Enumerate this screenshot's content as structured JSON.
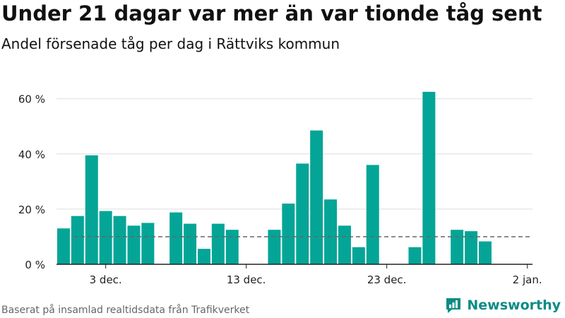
{
  "title": "Under 21 dagar var mer än var tionde tåg sent",
  "subtitle": "Andel försenade tåg per dag i Rättviks kommun",
  "footer": "Baserat på insamlad realtidsdata från Trafikverket",
  "brand": "Newsworthy",
  "colors": {
    "bar": "#04a597",
    "grid": "#dddddd",
    "axis": "#222222",
    "reference": "#666666",
    "brand": "#0b8c84"
  },
  "chart_data": {
    "type": "bar",
    "title": "Under 21 dagar var mer än var tionde tåg sent",
    "subtitle": "Andel försenade tåg per dag i Rättviks kommun",
    "xlabel": "",
    "ylabel": "",
    "ylim": [
      0,
      65
    ],
    "yticks": [
      0,
      20,
      40,
      60
    ],
    "ytick_labels": [
      "0 %",
      "20 %",
      "40 %",
      "60 %"
    ],
    "x_start": "2019-11-30",
    "xticks": [
      {
        "index": 3,
        "label": "3 dec."
      },
      {
        "index": 13,
        "label": "13 dec."
      },
      {
        "index": 23,
        "label": "23 dec."
      },
      {
        "index": 33,
        "label": "2 jan."
      }
    ],
    "reference_line": 10,
    "grid": true,
    "legend": "none",
    "values": [
      13,
      17.5,
      39.5,
      19.3,
      17.5,
      14,
      15,
      null,
      18.8,
      14.7,
      5.6,
      14.7,
      12.5,
      null,
      null,
      12.5,
      22,
      36.5,
      48.5,
      23.5,
      14,
      6.2,
      36,
      null,
      null,
      6.2,
      62.5,
      null,
      12.5,
      12,
      8.3
    ]
  }
}
